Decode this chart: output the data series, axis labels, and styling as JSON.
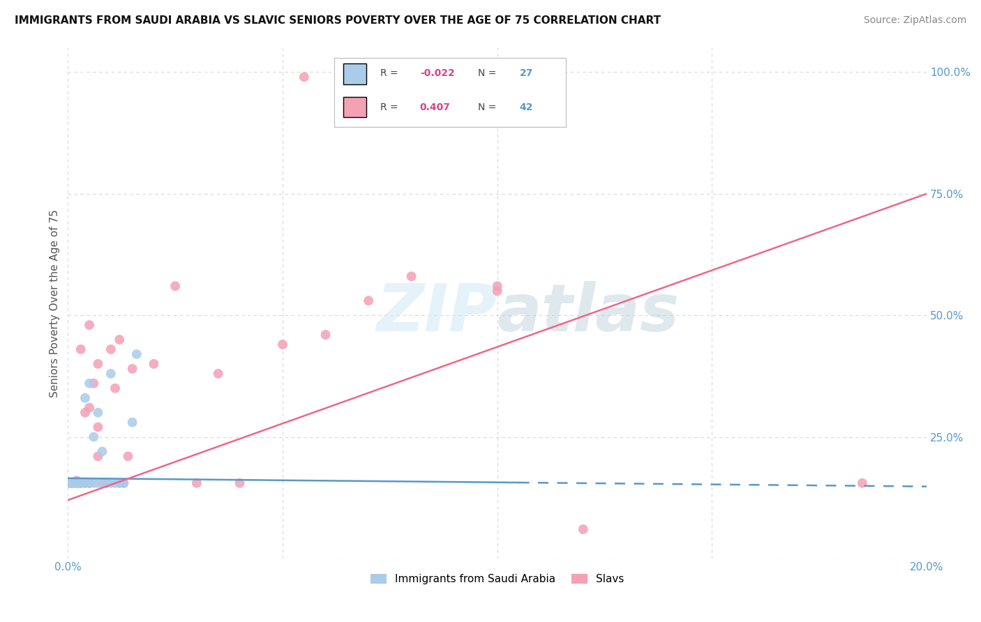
{
  "title": "IMMIGRANTS FROM SAUDI ARABIA VS SLAVIC SENIORS POVERTY OVER THE AGE OF 75 CORRELATION CHART",
  "source": "Source: ZipAtlas.com",
  "ylabel": "Seniors Poverty Over the Age of 75",
  "legend_labels": [
    "Immigrants from Saudi Arabia",
    "Slavs"
  ],
  "saudi_R": -0.022,
  "saudi_N": 27,
  "slavic_R": 0.407,
  "slavic_N": 42,
  "saudi_color": "#aacce8",
  "slavic_color": "#f4a0b5",
  "saudi_line_color": "#5599cc",
  "slavic_line_color": "#ee6688",
  "watermark_color": "#d0e8f5",
  "xlim": [
    0.0,
    0.2
  ],
  "ylim": [
    0.0,
    1.05
  ],
  "x_ticks": [
    0.0,
    0.05,
    0.1,
    0.15,
    0.2
  ],
  "x_tick_labels": [
    "0.0%",
    "",
    "",
    "",
    "20.0%"
  ],
  "y_ticks_right": [
    0.0,
    0.25,
    0.5,
    0.75,
    1.0
  ],
  "y_tick_labels_right": [
    "",
    "25.0%",
    "50.0%",
    "75.0%",
    "100.0%"
  ],
  "saudi_scatter_x": [
    0.0005,
    0.001,
    0.001,
    0.0015,
    0.002,
    0.002,
    0.0025,
    0.003,
    0.003,
    0.004,
    0.004,
    0.005,
    0.005,
    0.006,
    0.006,
    0.007,
    0.007,
    0.008,
    0.009,
    0.01,
    0.011,
    0.012,
    0.013,
    0.015,
    0.016,
    0.01,
    0.012
  ],
  "saudi_scatter_y": [
    0.155,
    0.155,
    0.155,
    0.155,
    0.155,
    0.155,
    0.155,
    0.155,
    0.155,
    0.155,
    0.33,
    0.155,
    0.36,
    0.155,
    0.25,
    0.3,
    0.155,
    0.22,
    0.155,
    0.38,
    0.155,
    0.155,
    0.155,
    0.28,
    0.42,
    0.155,
    0.155
  ],
  "slavic_scatter_x": [
    0.0005,
    0.001,
    0.002,
    0.002,
    0.003,
    0.003,
    0.004,
    0.004,
    0.005,
    0.005,
    0.005,
    0.005,
    0.006,
    0.007,
    0.007,
    0.007,
    0.008,
    0.009,
    0.01,
    0.011,
    0.012,
    0.013,
    0.014,
    0.015,
    0.02,
    0.025,
    0.03,
    0.035,
    0.04,
    0.05,
    0.06,
    0.07,
    0.08,
    0.1,
    0.12,
    0.185
  ],
  "slavic_scatter_y": [
    0.155,
    0.155,
    0.155,
    0.16,
    0.155,
    0.43,
    0.155,
    0.3,
    0.155,
    0.31,
    0.48,
    0.155,
    0.36,
    0.21,
    0.27,
    0.4,
    0.155,
    0.155,
    0.43,
    0.35,
    0.45,
    0.155,
    0.21,
    0.39,
    0.4,
    0.56,
    0.155,
    0.38,
    0.155,
    0.44,
    0.46,
    0.53,
    0.58,
    0.56,
    0.06,
    0.155
  ],
  "top_slavic_x": [
    0.055
  ],
  "top_slavic_y": [
    0.99
  ],
  "slavic_extra_x": [
    0.1
  ],
  "slavic_extra_y": [
    0.55
  ],
  "background_color": "#ffffff",
  "grid_color": "#d8d8d8",
  "saudi_line_x0": 0.0,
  "saudi_line_x1": 0.2,
  "saudi_line_y0": 0.165,
  "saudi_line_y1": 0.148,
  "slavic_line_x0": 0.0,
  "slavic_line_x1": 0.2,
  "slavic_line_y0": 0.12,
  "slavic_line_y1": 0.75
}
